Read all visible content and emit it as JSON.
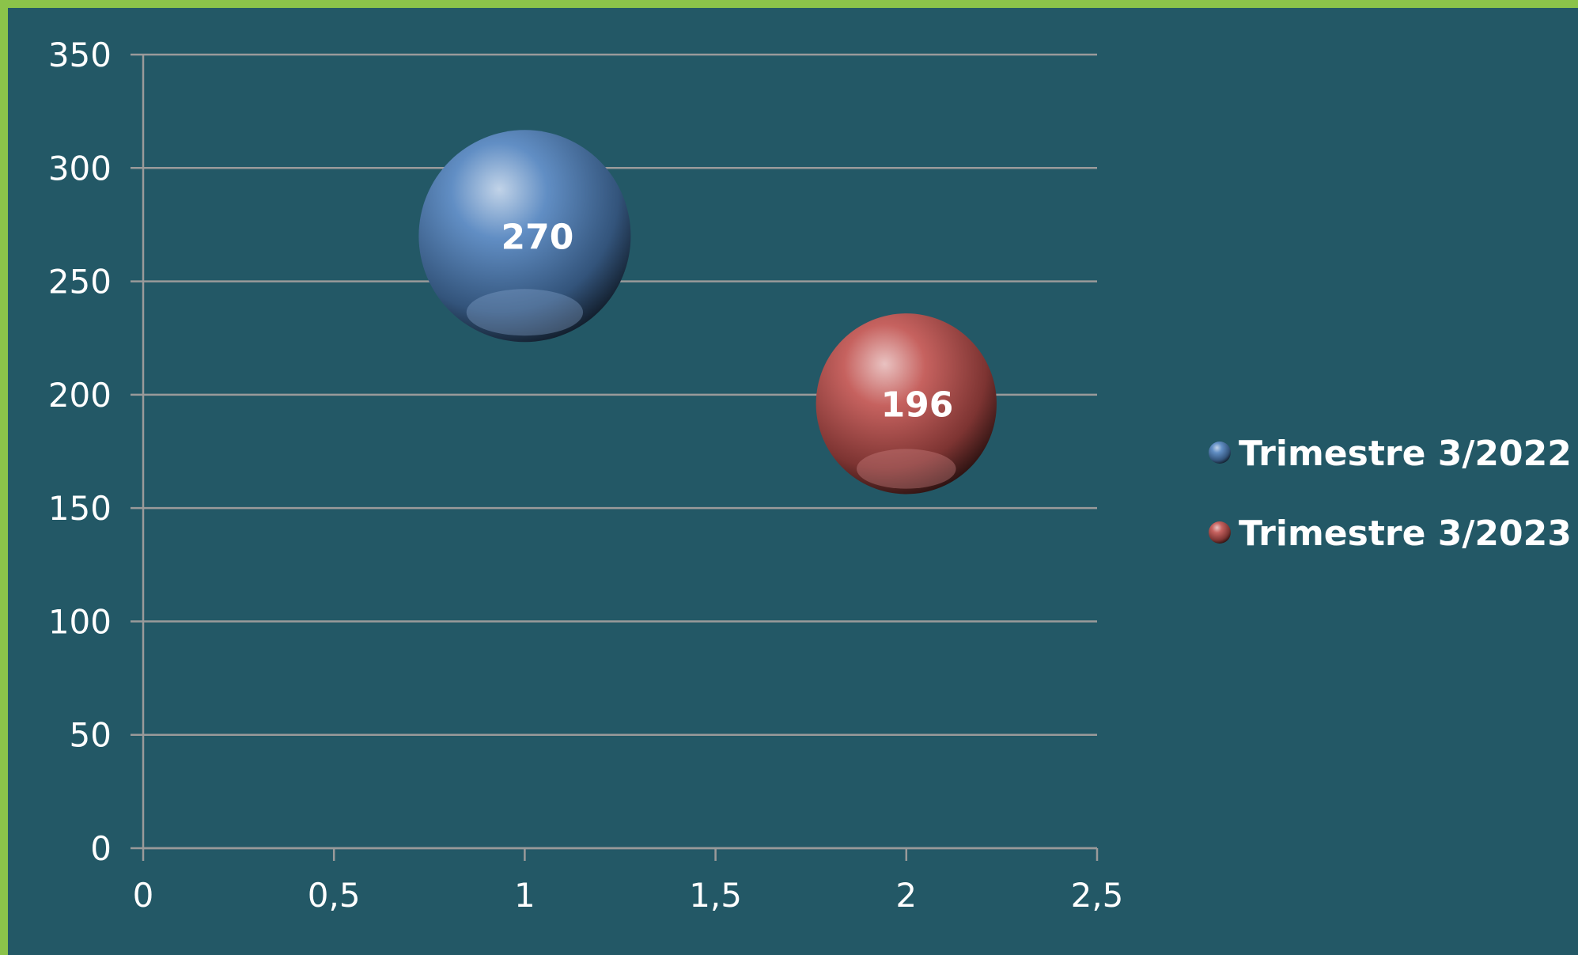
{
  "chart_data": {
    "type": "bubble",
    "title": "",
    "xlabel": "",
    "ylabel": "",
    "xlim": [
      0,
      2.5
    ],
    "ylim": [
      0,
      350
    ],
    "x_ticks": [
      "0",
      "0,5",
      "1",
      "1,5",
      "2",
      "2,5"
    ],
    "y_ticks": [
      "0",
      "50",
      "100",
      "150",
      "200",
      "250",
      "300",
      "350"
    ],
    "grid": true,
    "legend_position": "right",
    "series": [
      {
        "name": "Trimestre 3/2022",
        "x": 1,
        "y": 270,
        "size": 270,
        "label": "270",
        "color": "#4f81bd"
      },
      {
        "name": "Trimestre 3/2023",
        "x": 2,
        "y": 196,
        "size": 196,
        "label": "196",
        "color": "#c0504d"
      }
    ]
  },
  "colors": {
    "background": "#235866",
    "border": "#8bc34a",
    "grid": "#9a9a9a"
  }
}
